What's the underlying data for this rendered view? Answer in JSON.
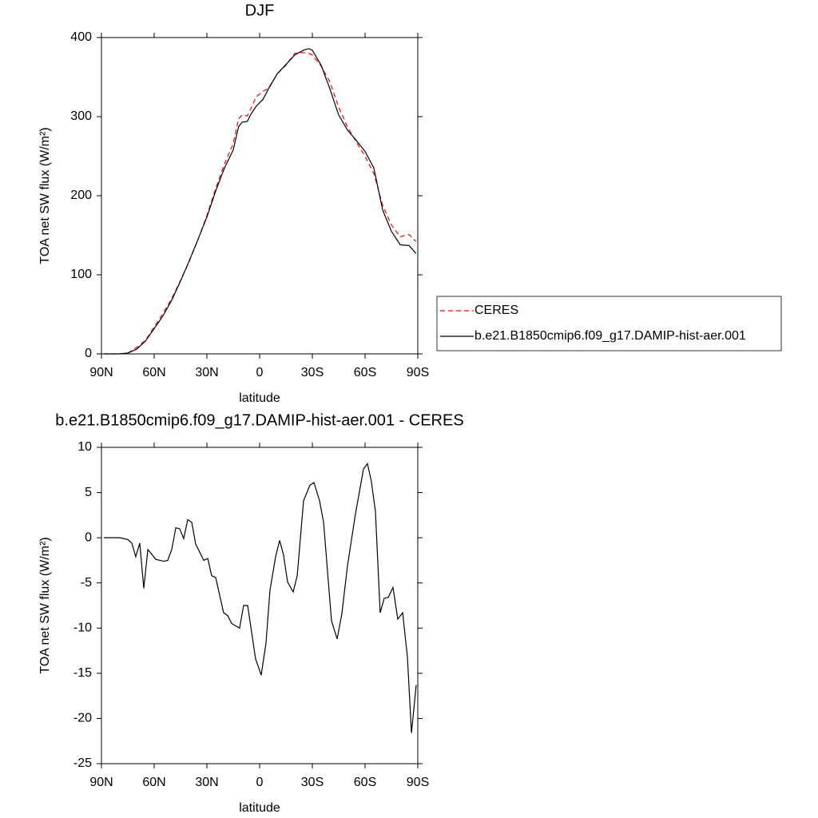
{
  "chart_data": [
    {
      "type": "line",
      "title": "DJF",
      "xlabel": "latitude",
      "ylabel": "TOA net SW flux (W/m²)",
      "x": [
        88.6,
        80,
        75,
        70,
        65,
        60,
        55,
        50,
        45,
        40,
        35,
        30,
        25,
        20,
        15,
        12,
        10,
        7,
        5,
        2,
        -2,
        -5,
        -10,
        -15,
        -20,
        -25,
        -28,
        -30,
        -35,
        -40,
        -45,
        -50,
        -55,
        -60,
        -65,
        -70,
        -75,
        -80,
        -85,
        -89
      ],
      "series": [
        {
          "name": "CERES",
          "color": "#ff0000",
          "line_style": "dashed",
          "values": [
            0,
            0,
            1,
            8,
            17,
            34,
            51,
            70,
            93,
            117,
            145,
            175,
            209,
            240,
            266,
            297,
            302,
            301,
            310,
            325,
            332,
            336,
            354,
            365,
            380,
            381,
            380,
            378,
            364,
            344,
            312,
            287,
            268,
            250,
            228,
            188,
            163,
            148,
            151,
            142
          ]
        },
        {
          "name": "b.e21.B1850cmip6.f09_g17.DAMIP-hist-aer.001",
          "color": "#000000",
          "line_style": "solid",
          "values": [
            0,
            0,
            1,
            6,
            16,
            32,
            48,
            68,
            92,
            118,
            145,
            173,
            206,
            235,
            258,
            287,
            293,
            294,
            303,
            313,
            322,
            335,
            354,
            366,
            378,
            384,
            386,
            384,
            365,
            335,
            302,
            283,
            270,
            256,
            235,
            182,
            155,
            138,
            137,
            127
          ]
        }
      ],
      "xlim": [
        90,
        -90
      ],
      "ylim": [
        0,
        400
      ],
      "xticks": [
        {
          "value": 90,
          "label": "90N"
        },
        {
          "value": 60,
          "label": "60N"
        },
        {
          "value": 30,
          "label": "30N"
        },
        0,
        {
          "value": -30,
          "label": "30S"
        },
        {
          "value": -60,
          "label": "60S"
        },
        {
          "value": -90,
          "label": "90S"
        }
      ],
      "yticks": [
        0,
        100,
        200,
        300,
        400
      ],
      "legend": "right"
    },
    {
      "type": "line",
      "title": "b.e21.B1850cmip6.f09_g17.DAMIP-hist-aer.001 - CERES",
      "xlabel": "latitude",
      "ylabel": "TOA net SW flux (W/m²)",
      "x": [
        88.6,
        79.5,
        75,
        72.7,
        70.5,
        68.2,
        65.9,
        63.6,
        59,
        54.5,
        52.3,
        50,
        47.7,
        45.5,
        43.2,
        40.9,
        38.6,
        36.4,
        31.8,
        29.5,
        27.3,
        25,
        20.5,
        18.2,
        15.9,
        11.4,
        9.1,
        6.8,
        2.3,
        -0.9,
        -3.6,
        -5.9,
        -9.1,
        -11.4,
        -13.6,
        -15.9,
        -19.1,
        -21.4,
        -25,
        -28.6,
        -30.9,
        -34.1,
        -36.4,
        -40.9,
        -44.1,
        -46.8,
        -50,
        -54.5,
        -59.1,
        -61.4,
        -63.6,
        -65.9,
        -68.6,
        -70.9,
        -73.2,
        -75.9,
        -78.6,
        -81.4,
        -84.1,
        -86.4,
        -89.1
      ],
      "series": [
        {
          "color": "#000000",
          "line_style": "solid",
          "values": [
            0,
            0,
            -0.2,
            -0.6,
            -2.1,
            -0.6,
            -5.6,
            -1.3,
            -2.4,
            -2.6,
            -2.5,
            -1.3,
            1.1,
            1.0,
            -0.1,
            2.0,
            1.7,
            -0.7,
            -2.5,
            -2.3,
            -4.2,
            -4.4,
            -8.3,
            -8.6,
            -9.5,
            -10,
            -7.5,
            -7.5,
            -13.4,
            -15.2,
            -11.7,
            -5.8,
            -2.1,
            -0.3,
            -1.9,
            -4.9,
            -6,
            -4.2,
            4.1,
            5.8,
            6.1,
            4.1,
            1.7,
            -9.2,
            -11.2,
            -8.4,
            -3.1,
            2.6,
            7.6,
            8.2,
            6.2,
            2.9,
            -8.3,
            -6.7,
            -6.6,
            -5.5,
            -9,
            -8.3,
            -13.2,
            -21.6,
            -16.3
          ]
        }
      ],
      "xlim": [
        90,
        -90
      ],
      "ylim": [
        -25,
        10
      ],
      "xticks": [
        {
          "value": 90,
          "label": "90N"
        },
        {
          "value": 60,
          "label": "60N"
        },
        {
          "value": 30,
          "label": "30N"
        },
        0,
        {
          "value": -30,
          "label": "30S"
        },
        {
          "value": -60,
          "label": "60S"
        },
        {
          "value": -90,
          "label": "90S"
        }
      ],
      "yticks": [
        -25,
        -20,
        -15,
        -10,
        -5,
        0,
        5,
        10
      ]
    }
  ]
}
